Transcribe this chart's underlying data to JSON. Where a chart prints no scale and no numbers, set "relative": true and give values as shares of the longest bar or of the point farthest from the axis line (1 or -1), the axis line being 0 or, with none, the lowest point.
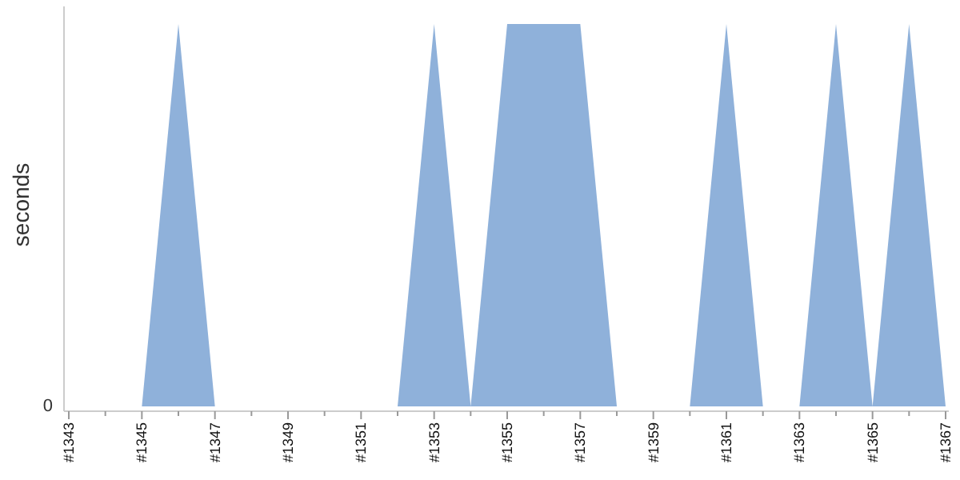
{
  "chart_data": {
    "type": "area",
    "ylabel": "seconds",
    "relative": true,
    "annotations": [
      "0"
    ],
    "categories": [
      "#1343",
      null,
      "#1345",
      null,
      "#1347",
      null,
      "#1349",
      null,
      "#1351",
      null,
      "#1353",
      null,
      "#1355",
      null,
      "#1357",
      null,
      "#1359",
      null,
      "#1361",
      null,
      "#1363",
      null,
      "#1365",
      null,
      "#1367"
    ],
    "series": [
      {
        "color": "#8fb1da",
        "values": [
          0,
          0,
          0,
          1,
          0,
          0,
          0,
          0,
          0,
          0,
          1,
          0,
          1,
          1,
          1,
          0,
          0,
          0,
          1,
          0,
          0,
          1,
          0,
          1,
          0
        ]
      }
    ]
  }
}
